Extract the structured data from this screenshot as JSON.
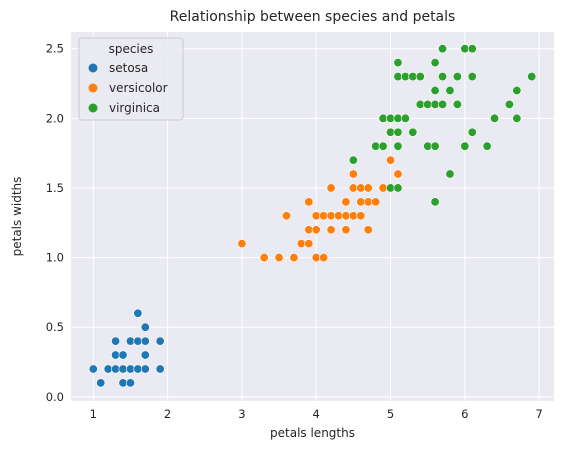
{
  "chart_data": {
    "type": "scatter",
    "title": "Relationship between species and petals",
    "xlabel": "petals lengths",
    "ylabel": "petals widths",
    "xlim": [
      0.7,
      7.2
    ],
    "ylim": [
      -0.03,
      2.62
    ],
    "xticks": [
      "1",
      "2",
      "3",
      "4",
      "5",
      "6",
      "7"
    ],
    "yticks": [
      "0.0",
      "0.5",
      "1.0",
      "1.5",
      "2.0",
      "2.5"
    ],
    "grid": true,
    "background": "#eaeaf2",
    "legend": {
      "title": "species",
      "placement": "top-left"
    },
    "series": [
      {
        "name": "setosa",
        "color": "#1f77b4",
        "points": [
          [
            1.0,
            0.2
          ],
          [
            1.1,
            0.1
          ],
          [
            1.2,
            0.2
          ],
          [
            1.3,
            0.2
          ],
          [
            1.3,
            0.3
          ],
          [
            1.3,
            0.4
          ],
          [
            1.4,
            0.1
          ],
          [
            1.4,
            0.2
          ],
          [
            1.4,
            0.3
          ],
          [
            1.5,
            0.1
          ],
          [
            1.5,
            0.2
          ],
          [
            1.5,
            0.4
          ],
          [
            1.6,
            0.2
          ],
          [
            1.6,
            0.4
          ],
          [
            1.6,
            0.6
          ],
          [
            1.7,
            0.2
          ],
          [
            1.7,
            0.3
          ],
          [
            1.7,
            0.4
          ],
          [
            1.7,
            0.5
          ],
          [
            1.9,
            0.2
          ],
          [
            1.9,
            0.4
          ]
        ]
      },
      {
        "name": "versicolor",
        "color": "#ff7f0e",
        "points": [
          [
            3.0,
            1.1
          ],
          [
            3.3,
            1.0
          ],
          [
            3.5,
            1.0
          ],
          [
            3.6,
            1.3
          ],
          [
            3.7,
            1.0
          ],
          [
            3.8,
            1.1
          ],
          [
            3.9,
            1.1
          ],
          [
            3.9,
            1.2
          ],
          [
            3.9,
            1.4
          ],
          [
            4.0,
            1.0
          ],
          [
            4.0,
            1.2
          ],
          [
            4.0,
            1.3
          ],
          [
            4.1,
            1.0
          ],
          [
            4.1,
            1.3
          ],
          [
            4.2,
            1.2
          ],
          [
            4.2,
            1.3
          ],
          [
            4.2,
            1.5
          ],
          [
            4.3,
            1.3
          ],
          [
            4.4,
            1.2
          ],
          [
            4.4,
            1.3
          ],
          [
            4.4,
            1.4
          ],
          [
            4.5,
            1.3
          ],
          [
            4.5,
            1.5
          ],
          [
            4.5,
            1.6
          ],
          [
            4.6,
            1.3
          ],
          [
            4.6,
            1.4
          ],
          [
            4.6,
            1.5
          ],
          [
            4.7,
            1.2
          ],
          [
            4.7,
            1.4
          ],
          [
            4.7,
            1.5
          ],
          [
            4.8,
            1.4
          ],
          [
            4.9,
            1.5
          ],
          [
            5.0,
            1.7
          ],
          [
            5.1,
            1.6
          ]
        ]
      },
      {
        "name": "virginica",
        "color": "#2ca02c",
        "points": [
          [
            4.5,
            1.7
          ],
          [
            4.8,
            1.8
          ],
          [
            4.9,
            1.8
          ],
          [
            4.9,
            2.0
          ],
          [
            5.0,
            1.5
          ],
          [
            5.0,
            1.9
          ],
          [
            5.0,
            2.0
          ],
          [
            5.1,
            1.5
          ],
          [
            5.1,
            1.8
          ],
          [
            5.1,
            1.9
          ],
          [
            5.1,
            2.0
          ],
          [
            5.1,
            2.3
          ],
          [
            5.1,
            2.4
          ],
          [
            5.2,
            2.0
          ],
          [
            5.2,
            2.3
          ],
          [
            5.3,
            1.9
          ],
          [
            5.3,
            2.3
          ],
          [
            5.4,
            2.1
          ],
          [
            5.4,
            2.3
          ],
          [
            5.5,
            1.8
          ],
          [
            5.5,
            2.1
          ],
          [
            5.6,
            1.4
          ],
          [
            5.6,
            1.8
          ],
          [
            5.6,
            2.1
          ],
          [
            5.6,
            2.2
          ],
          [
            5.6,
            2.4
          ],
          [
            5.7,
            2.1
          ],
          [
            5.7,
            2.3
          ],
          [
            5.7,
            2.5
          ],
          [
            5.8,
            1.6
          ],
          [
            5.8,
            2.2
          ],
          [
            5.9,
            2.1
          ],
          [
            5.9,
            2.3
          ],
          [
            6.0,
            1.8
          ],
          [
            6.0,
            2.5
          ],
          [
            6.1,
            1.9
          ],
          [
            6.1,
            2.3
          ],
          [
            6.1,
            2.5
          ],
          [
            6.3,
            1.8
          ],
          [
            6.4,
            2.0
          ],
          [
            6.6,
            2.1
          ],
          [
            6.7,
            2.0
          ],
          [
            6.7,
            2.2
          ],
          [
            6.9,
            2.3
          ]
        ]
      }
    ]
  }
}
